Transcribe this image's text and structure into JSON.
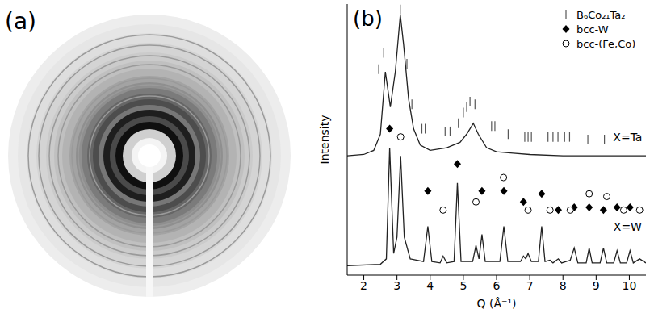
{
  "image": {
    "panel_label": "(a)",
    "type": "image"
  },
  "chart_data": {
    "panel_label": "(b)",
    "type": "line",
    "x_label": "Q (Å⁻¹)",
    "y_label": "Intensity",
    "xlim": [
      1.5,
      10.5
    ],
    "xticks": [
      2,
      3,
      4,
      5,
      6,
      7,
      8,
      9,
      10
    ],
    "ylim": [
      0,
      100
    ],
    "tick_labels": "x",
    "grid": false,
    "legend": "top-right",
    "series": [
      {
        "type": "line",
        "color": "#222222",
        "x": [
          1.5,
          2.0,
          2.3,
          2.5,
          2.65,
          2.8,
          2.95,
          3.1,
          3.2,
          3.35,
          3.5,
          3.7,
          4.0,
          4.5,
          4.9,
          5.1,
          5.3,
          5.45,
          5.7,
          6.0,
          6.5,
          7.0,
          8.0,
          9.0,
          10.5
        ],
        "values": [
          44,
          44.5,
          46,
          52,
          75,
          62,
          75,
          96,
          85,
          65,
          54,
          48,
          46,
          47,
          49,
          52,
          56,
          52,
          47,
          45.5,
          45,
          44.5,
          44,
          44,
          44
        ]
      },
      {
        "type": "line",
        "color": "#222222",
        "x": [
          1.5,
          2.5,
          2.68,
          2.78,
          2.9,
          3.0,
          3.11,
          3.22,
          3.4,
          3.8,
          3.93,
          4.05,
          4.3,
          4.39,
          4.5,
          4.72,
          4.82,
          4.93,
          5.28,
          5.38,
          5.47,
          5.56,
          5.66,
          6.1,
          6.22,
          6.34,
          6.72,
          6.81,
          6.88,
          6.95,
          7.05,
          7.26,
          7.36,
          7.46,
          7.61,
          7.7,
          7.86,
          7.96,
          8.22,
          8.34,
          8.45,
          8.7,
          8.79,
          8.88,
          9.12,
          9.22,
          9.32,
          9.53,
          9.63,
          9.73,
          9.92,
          10.02,
          10.12,
          10.31,
          10.5
        ],
        "values": [
          3.5,
          4,
          6,
          47,
          8,
          14,
          44,
          14,
          6,
          5,
          18,
          5,
          4.5,
          7,
          4.5,
          5,
          34,
          5,
          5,
          11,
          6,
          15,
          5,
          5,
          18,
          5,
          5,
          7,
          6,
          8,
          5,
          5,
          18,
          5,
          5.5,
          4.5,
          6,
          4.5,
          5.5,
          10,
          4.5,
          4.5,
          10,
          4.5,
          4.5,
          10,
          4.5,
          4.5,
          9,
          4.5,
          4.5,
          9,
          4.5,
          6,
          4.5
        ]
      },
      {
        "type": "scatter",
        "name": "B₆Co₂₁Ta₂",
        "marker": "vline",
        "color": "#555555",
        "x": [
          2.45,
          2.6,
          3.1,
          3.3,
          3.45,
          3.75,
          3.85,
          4.45,
          4.6,
          4.85,
          5.0,
          5.1,
          5.2,
          5.35,
          5.85,
          5.95,
          6.35,
          6.85,
          6.95,
          7.05,
          7.55,
          7.7,
          7.85,
          8.05,
          8.2,
          8.75,
          9.25
        ],
        "values": [
          76,
          82,
          98,
          78,
          63,
          54,
          54,
          53,
          53,
          56,
          60,
          62,
          64,
          63,
          55,
          55,
          52,
          51,
          51,
          51,
          51,
          51,
          51,
          51,
          51,
          50,
          50
        ]
      },
      {
        "type": "scatter",
        "name": "bcc-W",
        "marker": "diamond",
        "color": "#000000",
        "x": [
          2.78,
          3.93,
          4.82,
          5.56,
          6.22,
          6.81,
          7.36,
          7.86,
          8.34,
          8.79,
          9.22,
          9.63,
          10.02
        ],
        "values": [
          54,
          31,
          41,
          31,
          31,
          27,
          30,
          24,
          25,
          25,
          24,
          25,
          25
        ]
      },
      {
        "type": "scatter",
        "name": "bcc-(Fe,Co)",
        "marker": "circle",
        "color": "#000000",
        "x": [
          3.11,
          4.39,
          5.38,
          6.21,
          6.95,
          7.61,
          8.22,
          8.79,
          9.32,
          9.83,
          10.31
        ],
        "values": [
          51,
          24,
          27,
          36,
          24,
          24,
          24,
          30,
          29,
          24,
          24
        ]
      }
    ],
    "annotations": [
      {
        "text": "X=Ta",
        "x": 9.95,
        "y": 48
      },
      {
        "text": "X=W",
        "x": 9.95,
        "y": 15
      }
    ]
  }
}
